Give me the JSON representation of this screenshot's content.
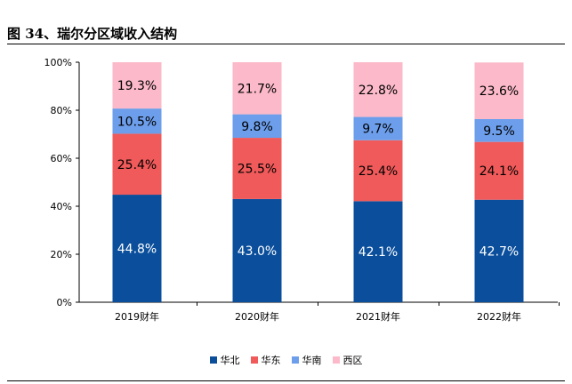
{
  "title": "图 34、瑞尔分区域收入结构",
  "chart_data": {
    "type": "bar",
    "stacked": true,
    "categories": [
      "2019财年",
      "2020财年",
      "2021财年",
      "2022财年"
    ],
    "series": [
      {
        "name": "华北",
        "color": "#0b4f9c",
        "values": [
          44.8,
          43.0,
          42.1,
          42.7
        ],
        "labels": [
          "44.8%",
          "43.0%",
          "42.1%",
          "42.7%"
        ],
        "label_color": "#ffffff"
      },
      {
        "name": "华东",
        "color": "#f05a5a",
        "values": [
          25.4,
          25.5,
          25.4,
          24.1
        ],
        "labels": [
          "25.4%",
          "25.5%",
          "25.4%",
          "24.1%"
        ],
        "label_color": "#000000"
      },
      {
        "name": "华南",
        "color": "#6d9eeb",
        "values": [
          10.5,
          9.8,
          9.7,
          9.5
        ],
        "labels": [
          "10.5%",
          "9.8%",
          "9.7%",
          "9.5%"
        ],
        "label_color": "#000000"
      },
      {
        "name": "西区",
        "color": "#fbb9c9",
        "values": [
          19.3,
          21.7,
          22.8,
          23.6
        ],
        "labels": [
          "19.3%",
          "21.7%",
          "22.8%",
          "23.6%"
        ],
        "label_color": "#000000"
      }
    ],
    "yticks": [
      "0%",
      "20%",
      "40%",
      "60%",
      "80%",
      "100%"
    ],
    "ylim": [
      0,
      100
    ],
    "legend_position": "bottom",
    "grid": false
  }
}
